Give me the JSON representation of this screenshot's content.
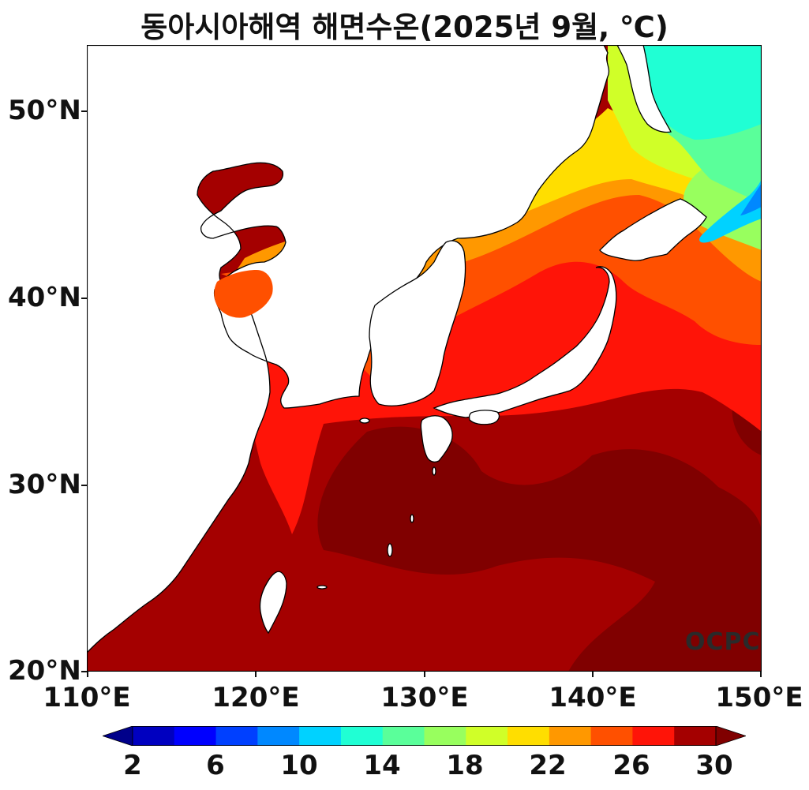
{
  "title": "동아시아해역 해면수온(2025년 9월, ℃)",
  "watermark": "OCPC",
  "colors": {
    "land": "#ffffff",
    "coast": "#000000",
    "sst_29": "#a40000",
    "sst_30plus": "#800000",
    "sst_27": "#ff1408",
    "sst_25": "#ff5000",
    "sst_23": "#ff9800",
    "sst_21": "#ffde00",
    "sst_19": "#d0ff28",
    "sst_17": "#98ff5e",
    "sst_15": "#5aff9a",
    "sst_13": "#20ffd4",
    "sst_11": "#00d2ff",
    "sst_9": "#0088ff",
    "sst_7": "#0040ff",
    "sst_5": "#0000ff",
    "sst_3": "#0000c0",
    "sst_below2": "#00008a"
  },
  "axes": {
    "lat_labels": [
      "50°N",
      "40°N",
      "30°N",
      "20°N"
    ],
    "lon_labels": [
      "110°E",
      "120°E",
      "130°E",
      "140°E",
      "150°E"
    ],
    "lat_range": [
      20,
      53.5
    ],
    "lon_range": [
      110,
      150
    ]
  },
  "colorbar": {
    "unit": "℃",
    "ticks": [
      "2",
      "6",
      "10",
      "14",
      "18",
      "22",
      "26",
      "30"
    ],
    "min": 2,
    "max": 30,
    "step": 2,
    "extend": "both",
    "colors": [
      "#0000c0",
      "#0000ff",
      "#0040ff",
      "#0088ff",
      "#00d2ff",
      "#20ffd4",
      "#5aff9a",
      "#98ff5e",
      "#d0ff28",
      "#ffde00",
      "#ff9800",
      "#ff5000",
      "#ff1408",
      "#a40000"
    ],
    "under_color": "#00008a",
    "over_color": "#800000"
  }
}
